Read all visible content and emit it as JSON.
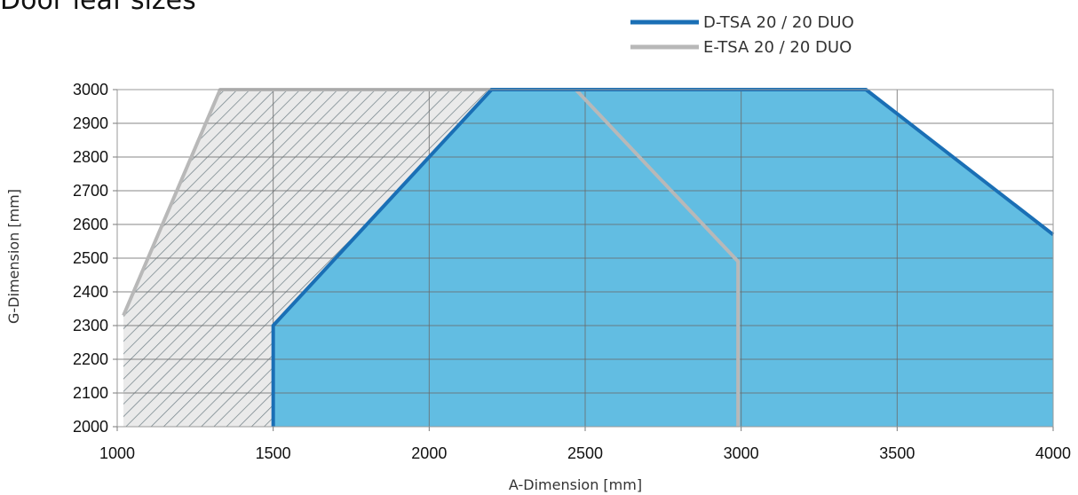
{
  "chart_data": {
    "type": "area",
    "title": "Door leaf sizes",
    "xlabel": "A-Dimension [mm]",
    "ylabel": "G-Dimension [mm]",
    "xlim": [
      1000,
      4000
    ],
    "ylim": [
      2000,
      3000
    ],
    "x_ticks": [
      "1000",
      "1500",
      "2000",
      "2500",
      "3000",
      "3500",
      "4000"
    ],
    "y_ticks": [
      "2000",
      "2100",
      "2200",
      "2300",
      "2400",
      "2500",
      "2600",
      "2700",
      "2800",
      "2900",
      "3000"
    ],
    "grid": true,
    "legend_position": "top-right",
    "series": [
      {
        "name": "D-TSA 20 / 20 DUO",
        "color": "#1a6fb5",
        "fill": "#62bde2",
        "fill_pattern": "solid",
        "points": [
          {
            "x": 1500,
            "y": 2000
          },
          {
            "x": 1500,
            "y": 2300
          },
          {
            "x": 2200,
            "y": 3000
          },
          {
            "x": 3400,
            "y": 3000
          },
          {
            "x": 4000,
            "y": 2570
          },
          {
            "x": 4000,
            "y": 2000
          }
        ]
      },
      {
        "name": "E-TSA 20 / 20 DUO",
        "color": "#b8b8b8",
        "fill": "#d9d9d9",
        "fill_pattern": "hatched",
        "points": [
          {
            "x": 1020,
            "y": 2000
          },
          {
            "x": 1020,
            "y": 2330
          },
          {
            "x": 1330,
            "y": 3000
          },
          {
            "x": 2470,
            "y": 3000
          },
          {
            "x": 2990,
            "y": 2490
          },
          {
            "x": 2990,
            "y": 2000
          }
        ]
      }
    ]
  }
}
